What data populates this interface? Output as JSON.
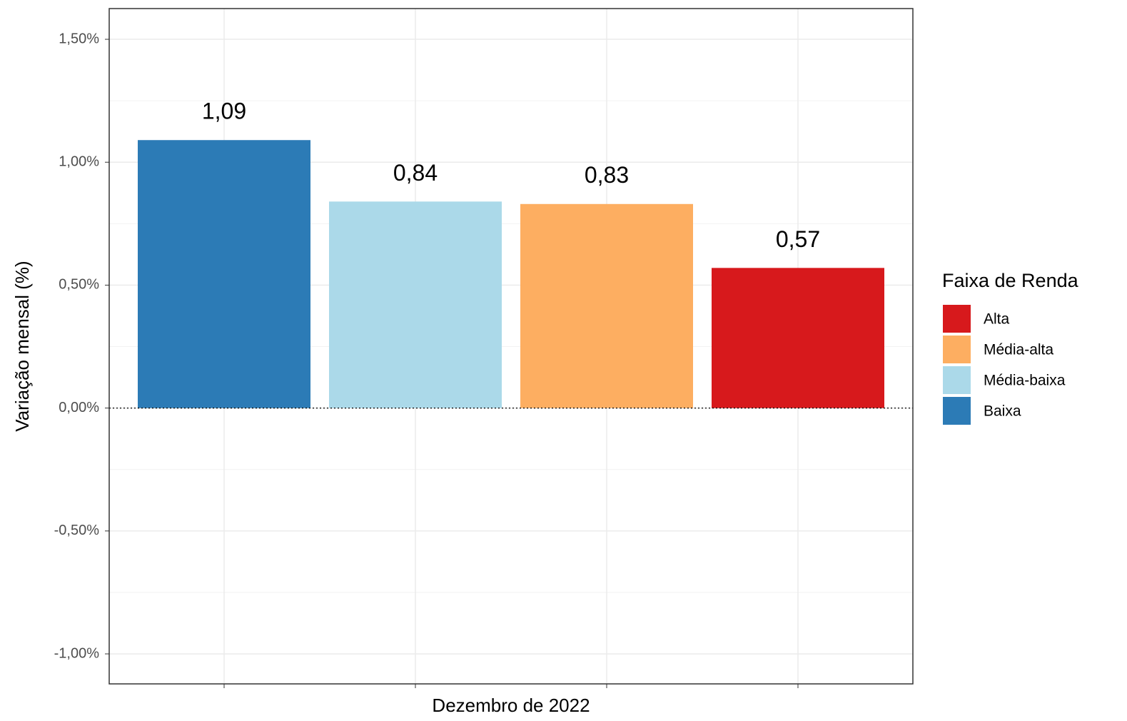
{
  "chart_data": {
    "type": "bar",
    "y_label": "Variação mensal (%)",
    "categories": [
      "Dezembro de 2022"
    ],
    "legend_title": "Faixa de Renda",
    "legend_position": "right",
    "series": [
      {
        "name": "Alta",
        "color": "#d7191c",
        "values": [
          0.57
        ],
        "value_labels": [
          "0,57"
        ]
      },
      {
        "name": "Média-alta",
        "color": "#fdae61",
        "values": [
          0.83
        ],
        "value_labels": [
          "0,83"
        ]
      },
      {
        "name": "Média-baixa",
        "color": "#abd9e9",
        "values": [
          0.84
        ],
        "value_labels": [
          "0,84"
        ]
      },
      {
        "name": "Baixa",
        "color": "#2c7bb6",
        "values": [
          1.09
        ],
        "value_labels": [
          "1,09"
        ]
      }
    ],
    "ylim": [
      -1.122,
      1.625
    ],
    "yticks": [
      {
        "value": -1,
        "label": "-1,00%"
      },
      {
        "value": -0.5,
        "label": "-0,50%"
      },
      {
        "value": 0,
        "label": "0,00%"
      },
      {
        "value": 0.5,
        "label": "0,50%"
      },
      {
        "value": 1,
        "label": "1,00%"
      },
      {
        "value": 1.5,
        "label": "1,50%"
      }
    ],
    "grid": true,
    "zero_line": "dotted"
  }
}
